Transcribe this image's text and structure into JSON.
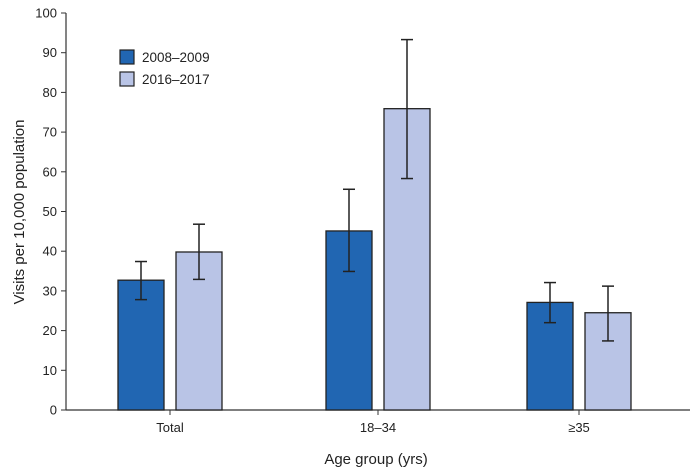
{
  "chart_data": {
    "type": "bar",
    "title": "",
    "xlabel": "Age group (yrs)",
    "ylabel": "Visits per 10,000 population",
    "ylim": [
      0,
      100
    ],
    "yticks": [
      0,
      10,
      20,
      30,
      40,
      50,
      60,
      70,
      80,
      90,
      100
    ],
    "categories": [
      "Total",
      "18–34",
      "≥35"
    ],
    "legend_position": "top-left",
    "series": [
      {
        "name": "2008–2009",
        "color": "#2166b2",
        "values": [
          32.7,
          45.1,
          27.1
        ],
        "error_low": [
          27.8,
          34.9,
          22.0
        ],
        "error_high": [
          37.4,
          55.6,
          32.1
        ]
      },
      {
        "name": "2016–2017",
        "color": "#b9c4e6",
        "values": [
          39.8,
          75.9,
          24.5
        ],
        "error_low": [
          32.9,
          58.3,
          17.4
        ],
        "error_high": [
          46.8,
          93.3,
          31.2
        ]
      }
    ]
  }
}
